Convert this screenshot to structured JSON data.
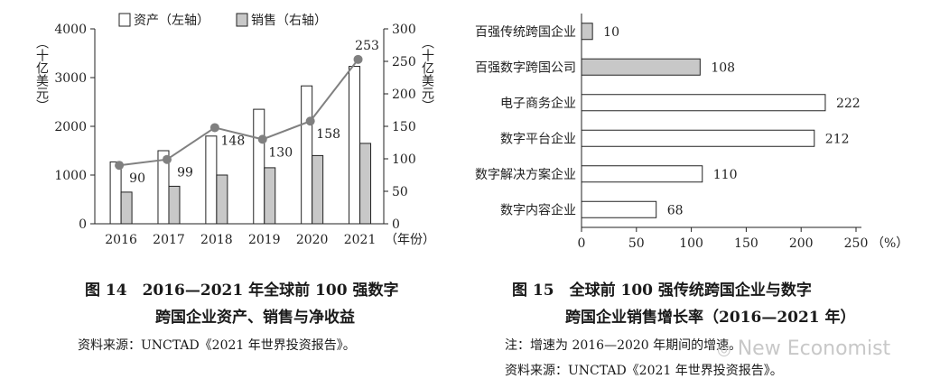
{
  "chart_data": [
    {
      "type": "bar",
      "title": "",
      "legend": [
        "资产（左轴）",
        "销售（右轴）"
      ],
      "legend_position": "top",
      "ylabel_left": "（十亿美元）",
      "ylabel_right": "（十亿美元）",
      "x_unit": "（年份）",
      "categories": [
        "2016",
        "2017",
        "2018",
        "2019",
        "2020",
        "2021"
      ],
      "ylim_left": [
        0,
        4000
      ],
      "yticks_left": [
        "0",
        "1000",
        "2000",
        "3000",
        "4000"
      ],
      "ylim_right": [
        0,
        300
      ],
      "yticks_right": [
        "0",
        "50",
        "100",
        "150",
        "200",
        "250",
        "300"
      ],
      "series": [
        {
          "name": "资产（左轴）",
          "axis": "left",
          "type": "bar",
          "values": [
            1270,
            1500,
            1800,
            2350,
            2830,
            3230
          ]
        },
        {
          "name": "销售（右轴）",
          "axis": "left",
          "type": "bar",
          "values": [
            650,
            770,
            1000,
            1150,
            1400,
            1650
          ]
        },
        {
          "name": "",
          "axis": "right",
          "type": "line",
          "values": [
            90,
            99,
            148,
            130,
            158,
            253
          ]
        }
      ],
      "data_labels": [
        "90",
        "99",
        "148",
        "130",
        "158",
        "253"
      ],
      "grid": false
    },
    {
      "type": "bar",
      "orientation": "horizontal",
      "title": "",
      "categories": [
        "百强传统跨国企业",
        "百强数字跨国公司",
        "电子商务企业",
        "数字平台企业",
        "数字解决方案企业",
        "数字内容企业"
      ],
      "values": [
        10,
        108,
        222,
        212,
        110,
        68
      ],
      "data_labels": [
        "10",
        "108",
        "222",
        "212",
        "110",
        "68"
      ],
      "highlight": [
        true,
        true,
        false,
        false,
        false,
        false
      ],
      "xlim": [
        0,
        250
      ],
      "xticks": [
        "0",
        "50",
        "100",
        "150",
        "200",
        "250"
      ],
      "x_unit": "（%）",
      "grid": false
    }
  ],
  "figure14": {
    "caption_line1": "图 14　2016—2021 年全球前 100 强数字",
    "caption_line2": "跨国企业资产、销售与净收益",
    "source": "资料来源：UNCTAD《2021 年世界投资报告》。"
  },
  "figure15": {
    "caption_line1": "图 15　全球前 100 强传统跨国企业与数字",
    "caption_line2": "跨国企业销售增长率（2016—2021 年）",
    "note": "注：增速为 2016—2020 年期间的增速。",
    "source": "资料来源：UNCTAD《2021 年世界投资报告》。"
  },
  "watermark": "New Economist",
  "colors": {
    "bar_fill_gray": "#c8c8c8",
    "bar_fill_white": "#ffffff",
    "line": "#808080",
    "stroke": "#222222"
  }
}
